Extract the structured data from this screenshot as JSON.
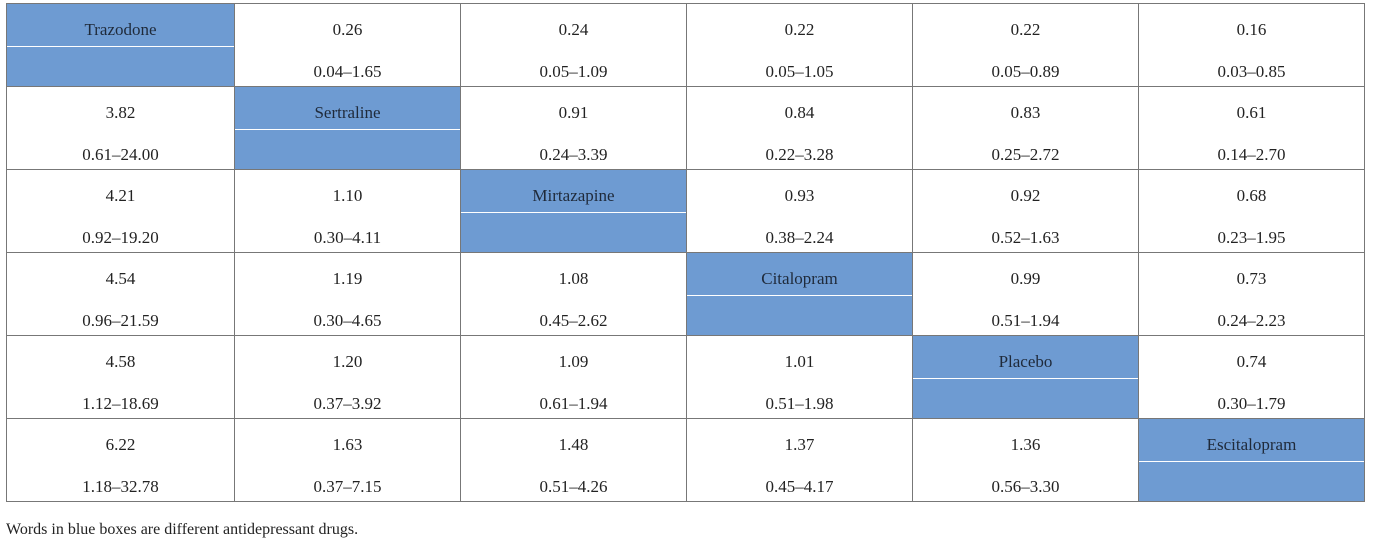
{
  "table": {
    "rows": [
      [
        {
          "type": "drug",
          "label": "Trazodone"
        },
        {
          "type": "value",
          "estimate": "0.26",
          "ci": "0.04–1.65"
        },
        {
          "type": "value",
          "estimate": "0.24",
          "ci": "0.05–1.09"
        },
        {
          "type": "value",
          "estimate": "0.22",
          "ci": "0.05–1.05"
        },
        {
          "type": "value",
          "estimate": "0.22",
          "ci": "0.05–0.89"
        },
        {
          "type": "value",
          "estimate": "0.16",
          "ci": "0.03–0.85"
        }
      ],
      [
        {
          "type": "value",
          "estimate": "3.82",
          "ci": "0.61–24.00"
        },
        {
          "type": "drug",
          "label": "Sertraline"
        },
        {
          "type": "value",
          "estimate": "0.91",
          "ci": "0.24–3.39"
        },
        {
          "type": "value",
          "estimate": "0.84",
          "ci": "0.22–3.28"
        },
        {
          "type": "value",
          "estimate": "0.83",
          "ci": "0.25–2.72"
        },
        {
          "type": "value",
          "estimate": "0.61",
          "ci": "0.14–2.70"
        }
      ],
      [
        {
          "type": "value",
          "estimate": "4.21",
          "ci": "0.92–19.20"
        },
        {
          "type": "value",
          "estimate": "1.10",
          "ci": "0.30–4.11"
        },
        {
          "type": "drug",
          "label": "Mirtazapine"
        },
        {
          "type": "value",
          "estimate": "0.93",
          "ci": "0.38–2.24"
        },
        {
          "type": "value",
          "estimate": "0.92",
          "ci": "0.52–1.63"
        },
        {
          "type": "value",
          "estimate": "0.68",
          "ci": "0.23–1.95"
        }
      ],
      [
        {
          "type": "value",
          "estimate": "4.54",
          "ci": "0.96–21.59"
        },
        {
          "type": "value",
          "estimate": "1.19",
          "ci": "0.30–4.65"
        },
        {
          "type": "value",
          "estimate": "1.08",
          "ci": "0.45–2.62"
        },
        {
          "type": "drug",
          "label": "Citalopram"
        },
        {
          "type": "value",
          "estimate": "0.99",
          "ci": "0.51–1.94"
        },
        {
          "type": "value",
          "estimate": "0.73",
          "ci": "0.24–2.23"
        }
      ],
      [
        {
          "type": "value",
          "estimate": "4.58",
          "ci": "1.12–18.69"
        },
        {
          "type": "value",
          "estimate": "1.20",
          "ci": "0.37–3.92"
        },
        {
          "type": "value",
          "estimate": "1.09",
          "ci": "0.61–1.94"
        },
        {
          "type": "value",
          "estimate": "1.01",
          "ci": "0.51–1.98"
        },
        {
          "type": "drug",
          "label": "Placebo"
        },
        {
          "type": "value",
          "estimate": "0.74",
          "ci": "0.30–1.79"
        }
      ],
      [
        {
          "type": "value",
          "estimate": "6.22",
          "ci": "1.18–32.78"
        },
        {
          "type": "value",
          "estimate": "1.63",
          "ci": "0.37–7.15"
        },
        {
          "type": "value",
          "estimate": "1.48",
          "ci": "0.51–4.26"
        },
        {
          "type": "value",
          "estimate": "1.37",
          "ci": "0.45–4.17"
        },
        {
          "type": "value",
          "estimate": "1.36",
          "ci": "0.56–3.30"
        },
        {
          "type": "drug",
          "label": "Escitalopram"
        }
      ]
    ]
  },
  "footnote": "Words in blue boxes are different antidepressant drugs.",
  "colors": {
    "drug_cell_background": "#6e9bd2",
    "border": "#777777"
  }
}
